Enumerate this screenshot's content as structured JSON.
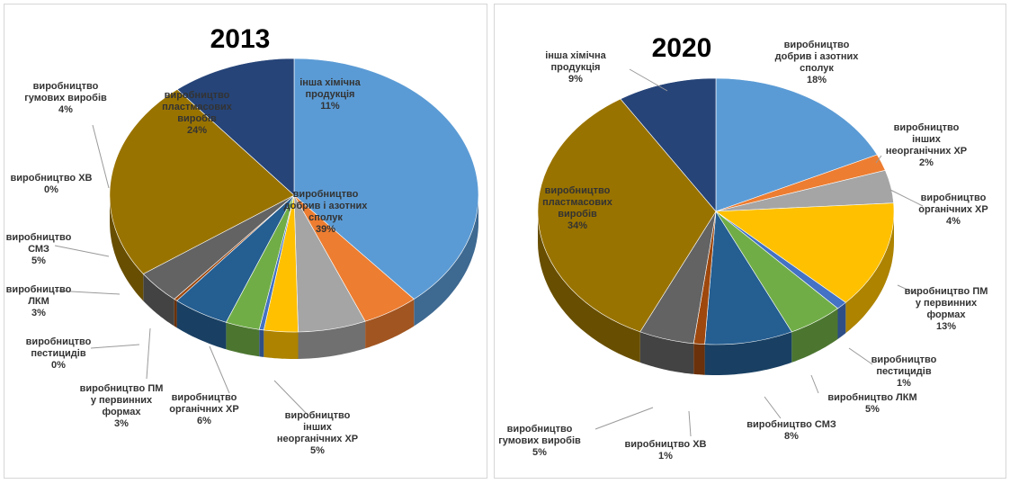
{
  "chart_data": [
    {
      "type": "pie",
      "title": "2013",
      "slices": [
        {
          "label": [
            "виробництво",
            "добрив і азотних",
            "сполук"
          ],
          "pct": "39%",
          "value": 39,
          "color": "#5b9bd5"
        },
        {
          "label": [
            "виробництво",
            "інших",
            "неорганічних ХР"
          ],
          "pct": "5%",
          "value": 5,
          "color": "#ed7d31"
        },
        {
          "label": [
            "виробництво",
            "органічних ХР"
          ],
          "pct": "6%",
          "value": 6,
          "color": "#a5a5a5"
        },
        {
          "label": [
            "виробництво ПМ",
            "у первинних",
            "формах"
          ],
          "pct": "3%",
          "value": 3,
          "color": "#ffc000"
        },
        {
          "label": [
            "виробництво",
            "пестицидів"
          ],
          "pct": "0%",
          "value": 0.4,
          "color": "#4472c4"
        },
        {
          "label": [
            "виробництво",
            "ЛКМ"
          ],
          "pct": "3%",
          "value": 3,
          "color": "#70ad47"
        },
        {
          "label": [
            "виробництво",
            "СМЗ"
          ],
          "pct": "5%",
          "value": 5,
          "color": "#255e91"
        },
        {
          "label": [
            "виробництво  ХВ"
          ],
          "pct": "0%",
          "value": 0.3,
          "color": "#9e480e"
        },
        {
          "label": [
            "виробництво",
            "гумових виробів"
          ],
          "pct": "4%",
          "value": 4,
          "color": "#636363"
        },
        {
          "label": [
            "виробництво",
            "пластмасових",
            "виробів"
          ],
          "pct": "24%",
          "value": 24,
          "color": "#997300"
        },
        {
          "label": [
            "інша хімічна",
            "продукція"
          ],
          "pct": "11%",
          "value": 11,
          "color": "#264478"
        }
      ]
    },
    {
      "type": "pie",
      "title": "2020",
      "slices": [
        {
          "label": [
            "виробництво",
            "добрив і азотних",
            "сполук"
          ],
          "pct": "18%",
          "value": 18,
          "color": "#5b9bd5"
        },
        {
          "label": [
            "виробництво",
            "інших",
            "неорганічних ХР"
          ],
          "pct": "2%",
          "value": 2,
          "color": "#ed7d31"
        },
        {
          "label": [
            "виробництво",
            "органічних ХР"
          ],
          "pct": "4%",
          "value": 4,
          "color": "#a5a5a5"
        },
        {
          "label": [
            "виробництво ПМ",
            "у первинних",
            "формах"
          ],
          "pct": "13%",
          "value": 13,
          "color": "#ffc000"
        },
        {
          "label": [
            "виробництво",
            "пестицидів"
          ],
          "pct": "1%",
          "value": 1,
          "color": "#4472c4"
        },
        {
          "label": [
            "виробництво ЛКМ"
          ],
          "pct": "5%",
          "value": 5,
          "color": "#70ad47"
        },
        {
          "label": [
            "виробництво СМЗ"
          ],
          "pct": "8%",
          "value": 8,
          "color": "#255e91"
        },
        {
          "label": [
            "виробництво  ХВ"
          ],
          "pct": "1%",
          "value": 1,
          "color": "#9e480e"
        },
        {
          "label": [
            "виробництво",
            "гумових виробів"
          ],
          "pct": "5%",
          "value": 5,
          "color": "#636363"
        },
        {
          "label": [
            "виробництво",
            "пластмасових",
            "виробів"
          ],
          "pct": "34%",
          "value": 34,
          "color": "#997300"
        },
        {
          "label": [
            "інша хімічна",
            "продукція"
          ],
          "pct": "9%",
          "value": 9,
          "color": "#264478"
        }
      ]
    }
  ]
}
